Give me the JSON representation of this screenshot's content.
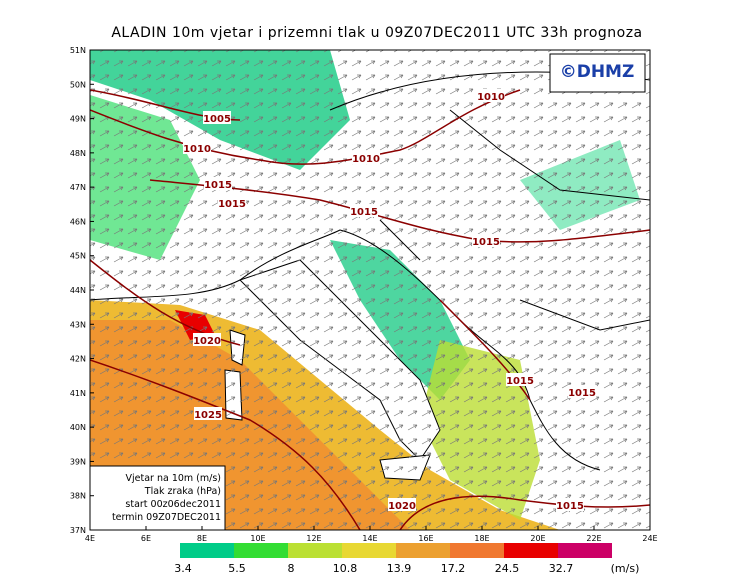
{
  "title": "ALADIN 10m vjetar i prizemni tlak u 09Z07DEC2011 UTC 33h prognoza",
  "logo": "©DHMZ",
  "latitude_labels": [
    "51N",
    "50N",
    "49N",
    "48N",
    "47N",
    "46N",
    "45N",
    "44N",
    "43N",
    "42N",
    "41N",
    "40N",
    "39N",
    "38N",
    "37N"
  ],
  "longitude_labels": [
    "4E",
    "6E",
    "8E",
    "10E",
    "12E",
    "14E",
    "16E",
    "18E",
    "20E",
    "22E",
    "24E"
  ],
  "isobar_labels": [
    "1005",
    "1010",
    "1015",
    "1015",
    "1010",
    "1015",
    "1010",
    "1015",
    "1020",
    "1025",
    "1015",
    "1015",
    "1020",
    "1015"
  ],
  "info_box": [
    "Vjetar na 10m (m/s)",
    "Tlak zraka (hPa)",
    "start 00z06dec2011",
    "termin 09Z07DEC2011"
  ],
  "legend": {
    "values": [
      3.4,
      5.5,
      8,
      10.8,
      13.9,
      17.2,
      24.5,
      32.7
    ],
    "unit": "(m/s)"
  }
}
